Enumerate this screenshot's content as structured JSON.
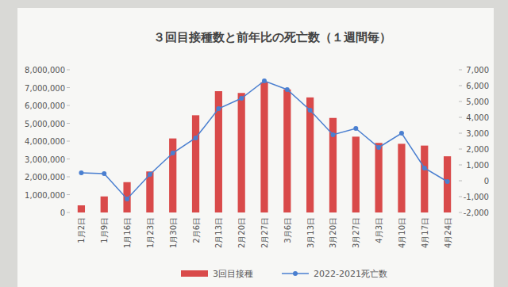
{
  "chart_data": {
    "type": "bar",
    "title": "３回目接種数と前年比の死亡数（１週間毎）",
    "categories": [
      "1月2日",
      "1月9日",
      "1月16日",
      "1月23日",
      "1月30日",
      "2月6日",
      "2月13日",
      "2月20日",
      "2月27日",
      "3月6日",
      "3月13日",
      "3月20日",
      "3月27日",
      "4月3日",
      "4月10日",
      "4月17日",
      "4月24日"
    ],
    "series": [
      {
        "name": "3回目接種",
        "type": "bar",
        "color": "#d94a4a",
        "values": [
          400000,
          900000,
          1700000,
          2300000,
          4150000,
          5450000,
          6800000,
          6700000,
          7300000,
          6900000,
          6450000,
          5300000,
          4250000,
          3900000,
          3850000,
          3750000,
          3150000
        ]
      },
      {
        "name": "2022-2021死亡数",
        "type": "line",
        "axis": "y2",
        "color": "#4a7fd0",
        "marker": "circle",
        "line_style": "solid",
        "values": [
          500,
          450,
          -1150,
          400,
          1750,
          2700,
          4550,
          5200,
          6300,
          5750,
          4450,
          2900,
          3300,
          2100,
          3000,
          800,
          -50
        ]
      }
    ],
    "ylim": [
      0,
      8000000
    ],
    "yticks": [
      0,
      {
        "value": 1000000,
        "label": "1,000,000"
      },
      {
        "value": 2000000,
        "label": "2,000,000"
      },
      {
        "value": 3000000,
        "label": "3,000,000"
      },
      {
        "value": 4000000,
        "label": "4,000,000"
      },
      {
        "value": 5000000,
        "label": "5,000,000"
      },
      {
        "value": 6000000,
        "label": "6,000,000"
      },
      {
        "value": 7000000,
        "label": "7,000,000"
      },
      {
        "value": 8000000,
        "label": "8,000,000"
      }
    ],
    "y2lim": [
      -2000,
      7000
    ],
    "y2ticks": [
      {
        "value": -2000,
        "label": "-2,000"
      },
      {
        "value": -1000,
        "label": "-1,000"
      },
      0,
      {
        "value": 1000,
        "label": "1,000"
      },
      {
        "value": 2000,
        "label": "2,000"
      },
      {
        "value": 3000,
        "label": "3,000"
      },
      {
        "value": 4000,
        "label": "4,000"
      },
      {
        "value": 5000,
        "label": "5,000"
      },
      {
        "value": 6000,
        "label": "6,000"
      },
      {
        "value": 7000,
        "label": "7,000"
      }
    ],
    "grid": false,
    "legend": "bottom"
  }
}
